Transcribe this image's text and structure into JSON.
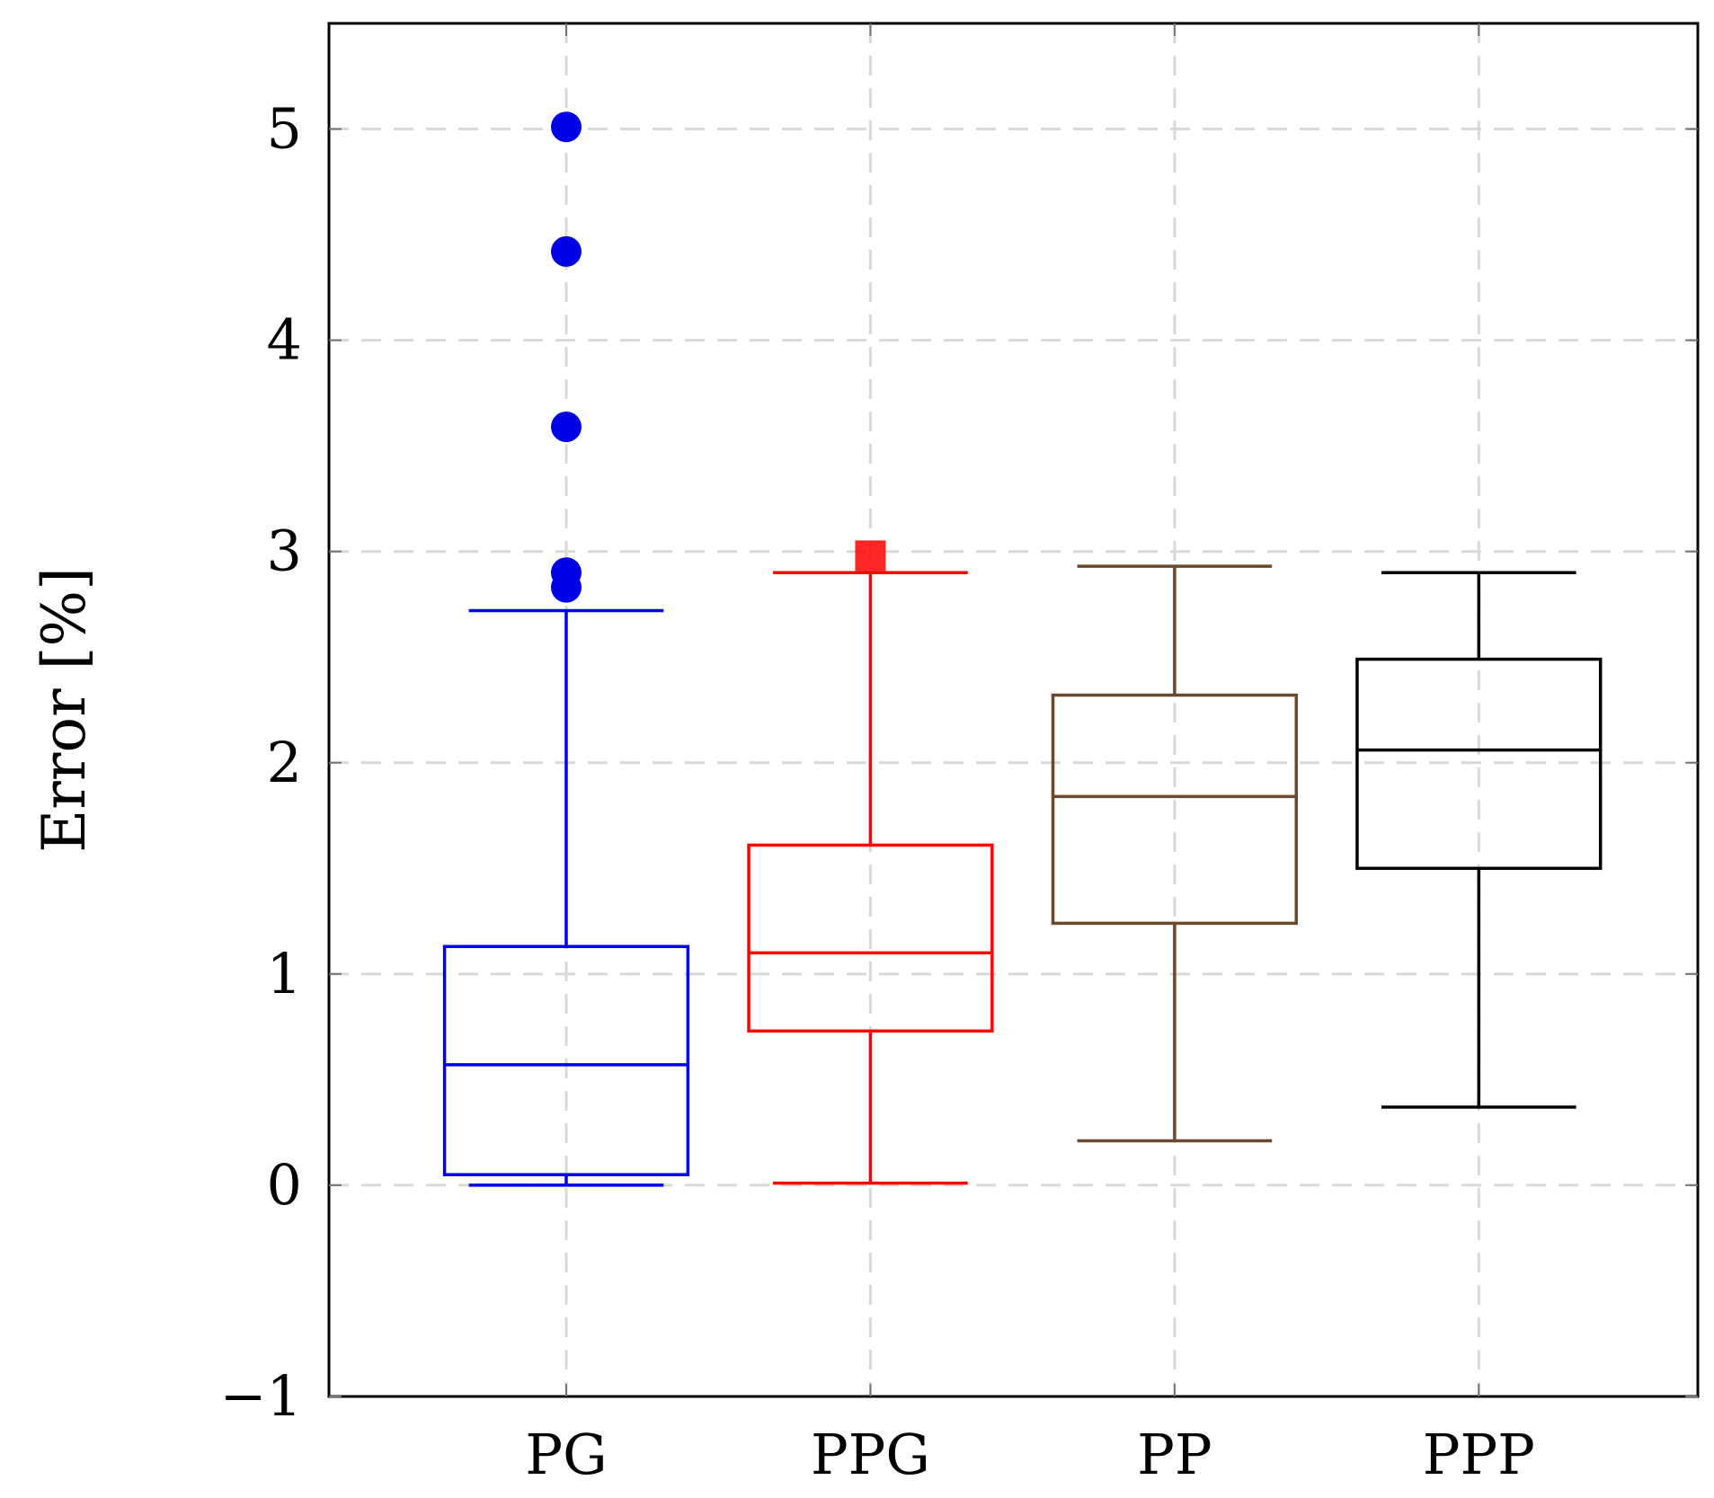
{
  "chart_data": {
    "type": "boxplot",
    "title": "",
    "xlabel": "",
    "ylabel": "Error [%]",
    "ylim": [
      -1,
      5.5
    ],
    "yticks": [
      {
        "value": -1,
        "label": "−1"
      },
      {
        "value": 0,
        "label": "0"
      },
      {
        "value": 1,
        "label": "1"
      },
      {
        "value": 2,
        "label": "2"
      },
      {
        "value": 3,
        "label": "3"
      },
      {
        "value": 4,
        "label": "4"
      },
      {
        "value": 5,
        "label": "5"
      }
    ],
    "grid": true,
    "categories": [
      "PG",
      "PPG",
      "PP",
      "PPP"
    ],
    "series": [
      {
        "name": "PG",
        "color": "#0000e6",
        "whisker_low": 0.0,
        "q1": 0.05,
        "median": 0.57,
        "q3": 1.13,
        "whisker_high": 2.72,
        "outliers": [
          2.83,
          2.9,
          3.59,
          4.42,
          5.01
        ],
        "outlier_marker": "circle"
      },
      {
        "name": "PPG",
        "color": "#ff0000",
        "whisker_low": 0.01,
        "q1": 0.73,
        "median": 1.1,
        "q3": 1.61,
        "whisker_high": 2.9,
        "outliers": [
          2.98
        ],
        "outlier_marker": "square"
      },
      {
        "name": "PP",
        "color": "#6b4a2b",
        "whisker_low": 0.21,
        "q1": 1.24,
        "median": 1.84,
        "q3": 2.32,
        "whisker_high": 2.93,
        "outliers": [],
        "outlier_marker": "circle"
      },
      {
        "name": "PPP",
        "color": "#000000",
        "whisker_low": 0.37,
        "q1": 1.5,
        "median": 2.06,
        "q3": 2.49,
        "whisker_high": 2.9,
        "outliers": [],
        "outlier_marker": "circle"
      }
    ]
  }
}
